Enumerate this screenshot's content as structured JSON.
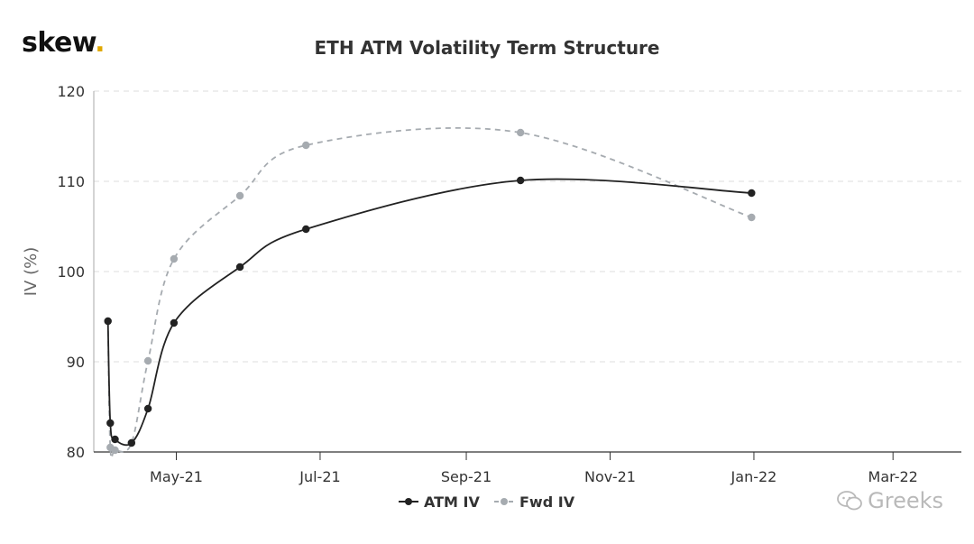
{
  "brand": {
    "name": "skew",
    "dot": ".",
    "watermark": "Greeks"
  },
  "chart_data": {
    "type": "line",
    "title": "ETH ATM Volatility Term Structure",
    "xlabel": "",
    "ylabel": "IV (%)",
    "ylim": [
      80,
      120
    ],
    "yticks": [
      80,
      90,
      100,
      110,
      120
    ],
    "xticks": [
      {
        "date": "2021-05-01",
        "label": "May-21"
      },
      {
        "date": "2021-07-01",
        "label": "Jul-21"
      },
      {
        "date": "2021-09-01",
        "label": "Sep-21"
      },
      {
        "date": "2021-11-01",
        "label": "Nov-21"
      },
      {
        "date": "2022-01-01",
        "label": "Jan-22"
      },
      {
        "date": "2022-03-01",
        "label": "Mar-22"
      }
    ],
    "xlim": [
      "2021-03-27",
      "2022-03-30"
    ],
    "grid": true,
    "legend_position": "bottom-center",
    "series": [
      {
        "name": "ATM IV",
        "color": "#222222",
        "dash": "solid",
        "points": [
          {
            "x": "2021-04-02",
            "y": 94.5
          },
          {
            "x": "2021-04-03",
            "y": 83.2
          },
          {
            "x": "2021-04-05",
            "y": 81.4
          },
          {
            "x": "2021-04-12",
            "y": 81.0
          },
          {
            "x": "2021-04-19",
            "y": 84.8
          },
          {
            "x": "2021-04-30",
            "y": 94.3
          },
          {
            "x": "2021-05-28",
            "y": 100.5
          },
          {
            "x": "2021-06-25",
            "y": 104.7
          },
          {
            "x": "2021-09-24",
            "y": 110.1
          },
          {
            "x": "2021-12-31",
            "y": 108.7
          }
        ]
      },
      {
        "name": "Fwd IV",
        "color": "#a6abb0",
        "dash": "dashed",
        "points": [
          {
            "x": "2021-04-02",
            "y": 94.5
          },
          {
            "x": "2021-04-03",
            "y": 80.5
          },
          {
            "x": "2021-04-05",
            "y": 80.2
          },
          {
            "x": "2021-04-12",
            "y": 81.0
          },
          {
            "x": "2021-04-19",
            "y": 90.1
          },
          {
            "x": "2021-04-30",
            "y": 101.4
          },
          {
            "x": "2021-05-28",
            "y": 108.4
          },
          {
            "x": "2021-06-25",
            "y": 114.0
          },
          {
            "x": "2021-09-24",
            "y": 115.4
          },
          {
            "x": "2021-12-31",
            "y": 106.0
          }
        ]
      }
    ]
  }
}
